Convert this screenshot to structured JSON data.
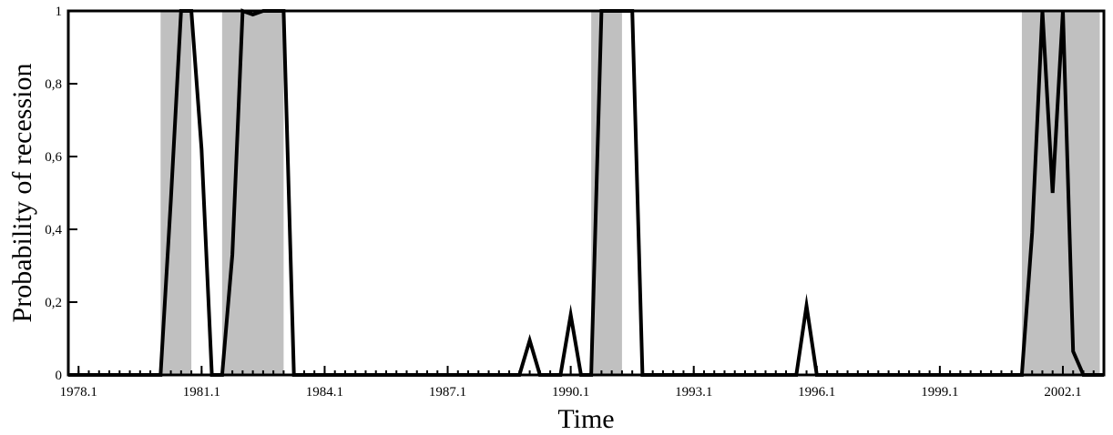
{
  "chart_data": {
    "type": "line",
    "xlabel": "Time",
    "ylabel": "Probability of recession",
    "xlim": [
      1977.75,
      2003.0
    ],
    "ylim": [
      0,
      1
    ],
    "x_tick_labels": [
      "1978.1",
      "1981.1",
      "1984.1",
      "1987.1",
      "1990.1",
      "1993.1",
      "1996.1",
      "1999.1",
      "2002.1"
    ],
    "x_tick_values": [
      1978.0,
      1981.0,
      1984.0,
      1987.0,
      1990.0,
      1993.0,
      1996.0,
      1999.0,
      2002.0
    ],
    "y_tick_labels": [
      "0",
      "0,2",
      "0,4",
      "0,6",
      "0,8",
      "1"
    ],
    "y_tick_values": [
      0,
      0.2,
      0.4,
      0.6,
      0.8,
      1
    ],
    "minor_tick_step": 0.25,
    "recession_periods": [
      [
        1980.0,
        1980.75
      ],
      [
        1981.5,
        1983.0
      ],
      [
        1990.5,
        1991.25
      ],
      [
        2001.0,
        2002.9
      ]
    ],
    "recession_color": "#c0c0c0",
    "line_color": "#000000",
    "series": [
      {
        "x": [
          1977.75,
          1980.0,
          1980.25,
          1980.5,
          1980.75,
          1981.0,
          1981.25,
          1981.5,
          1981.75,
          1982.0,
          1982.25,
          1982.5,
          1982.75,
          1983.0,
          1983.25,
          1983.5,
          1988.75,
          1989.0,
          1989.25,
          1989.75,
          1990.0,
          1990.25,
          1990.5,
          1990.75,
          1991.0,
          1991.25,
          1991.5,
          1991.75,
          1995.5,
          1995.75,
          1996.0,
          2000.75,
          2001.0,
          2001.25,
          2001.5,
          2001.75,
          2002.0,
          2002.25,
          2002.5,
          2002.75,
          2003.0
        ],
        "y": [
          0,
          0,
          0.48,
          1,
          1,
          0.62,
          0,
          0,
          0.33,
          1,
          0.99,
          1,
          1,
          1,
          0,
          0,
          0,
          0.095,
          0,
          0,
          0.165,
          0,
          0,
          1,
          1,
          1,
          1,
          0,
          0,
          0.19,
          0,
          0,
          0,
          0.39,
          1,
          0.5,
          1,
          0.065,
          0,
          0,
          0
        ]
      }
    ]
  }
}
